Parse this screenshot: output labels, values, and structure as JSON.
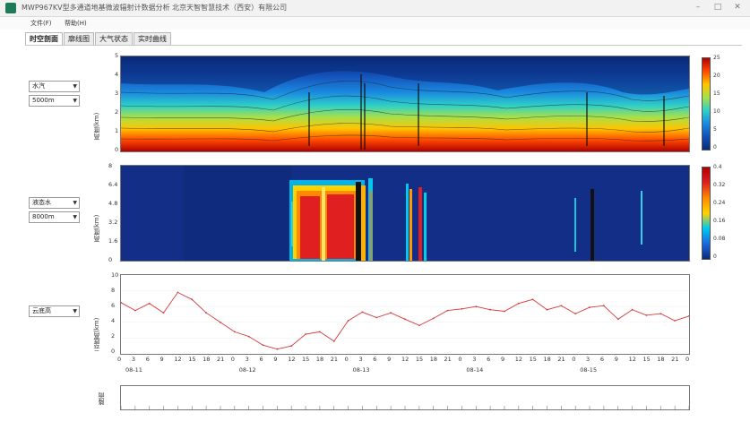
{
  "window": {
    "title": "MWP967KV型多通道地基微波辐射计数据分析    北京天智智慧技术（西安）有限公司"
  },
  "menu": [
    "文件(F)",
    "帮助(H)"
  ],
  "tabs": [
    "时空剖面",
    "廓线图",
    "大气状态",
    "实时曲线"
  ],
  "controls": {
    "panel1": {
      "variable": "水汽",
      "height": "5000m"
    },
    "panel2": {
      "variable": "液态水",
      "height": "8000m"
    },
    "panel3": {
      "variable": "云底高"
    }
  },
  "colors": {
    "accent": "#d43a3a"
  },
  "chart_data": [
    {
      "type": "heatmap",
      "title": "",
      "ylabel": "高度(km)",
      "yticks": [
        "0",
        "1",
        "2",
        "3",
        "4",
        "5"
      ],
      "ylim": [
        0,
        5
      ],
      "colorbar_ticks": [
        "25",
        "20",
        "15",
        "10",
        "5",
        "0"
      ],
      "colorbar_range": [
        0,
        25
      ]
    },
    {
      "type": "heatmap",
      "title": "",
      "ylabel": "高度(km)",
      "yticks": [
        "0",
        "1.6",
        "3.2",
        "4.8",
        "6.4",
        "8"
      ],
      "ylim": [
        0,
        8
      ],
      "colorbar_ticks": [
        "0.4",
        "0.32",
        "0.24",
        "0.16",
        "0.08",
        "0"
      ],
      "colorbar_range": [
        0,
        0.4
      ]
    },
    {
      "type": "line",
      "title": "",
      "ylabel": "云底高(km)",
      "yticks": [
        "0",
        "2",
        "4",
        "6",
        "8",
        "10"
      ],
      "ylim": [
        0,
        10
      ],
      "series_color": "#d43a3a",
      "x_hour_ticks": [
        "0",
        "3",
        "6",
        "9",
        "12",
        "15",
        "18",
        "21",
        "0",
        "3",
        "6",
        "9",
        "12",
        "15",
        "18",
        "21",
        "0",
        "3",
        "6",
        "9",
        "12",
        "15",
        "18",
        "21",
        "0",
        "3",
        "6",
        "9",
        "12",
        "15",
        "18",
        "21",
        "0",
        "3",
        "6",
        "9",
        "12",
        "15",
        "18",
        "21",
        "0"
      ],
      "x_date_labels": [
        "08-11",
        "08-12",
        "08-13",
        "08-14",
        "08-15"
      ],
      "series": [
        {
          "x": [
            0,
            3,
            6,
            9,
            12,
            15,
            18,
            21,
            24,
            27,
            30,
            33,
            36,
            39,
            42,
            45,
            48,
            51,
            54,
            57,
            60,
            63,
            66,
            69,
            72,
            75,
            78,
            81,
            84,
            87,
            90,
            93,
            96,
            99,
            102,
            105,
            108,
            111,
            114,
            117,
            120
          ],
          "y": [
            6.5,
            5.5,
            6.4,
            5.2,
            7.8,
            6.9,
            5.2,
            4.0,
            2.8,
            2.2,
            1.1,
            0.6,
            1.0,
            2.5,
            2.8,
            1.6,
            4.2,
            5.3,
            4.6,
            5.2,
            4.4,
            3.6,
            4.5,
            5.5,
            5.7,
            6.0,
            5.6,
            5.4,
            6.4,
            6.9,
            5.6,
            6.1,
            5.1,
            5.9,
            6.1,
            4.4,
            5.6,
            4.9,
            5.1,
            4.2,
            4.8
          ]
        }
      ]
    }
  ],
  "bottom_panel": {
    "label": "降雨"
  }
}
